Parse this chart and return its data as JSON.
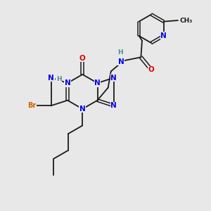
{
  "background_color": "#e8e8e8",
  "atom_colors": {
    "N": "#0000ee",
    "O": "#dd0000",
    "Br": "#cc6600",
    "H": "#4a9090",
    "C": "#1a1a1a"
  },
  "bond_color": "#1a1a1a",
  "figsize": [
    3.0,
    3.0
  ],
  "dpi": 100,
  "xlim": [
    0,
    9
  ],
  "ylim": [
    0,
    9
  ]
}
